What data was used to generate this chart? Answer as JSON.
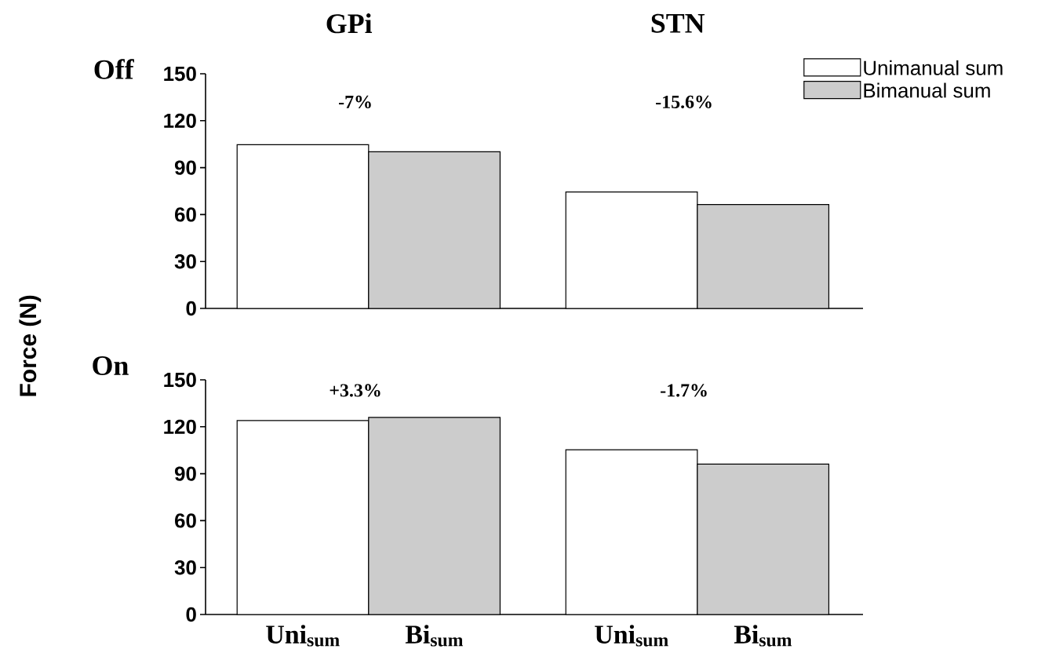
{
  "chart_data": [
    {
      "type": "bar",
      "title": "Off",
      "ylabel": "Force (N)",
      "categories": [
        null,
        null,
        null,
        null
      ],
      "series": [
        {
          "name": "Unimanual sum",
          "color": "#ffffff",
          "values": [
            104.7,
            null,
            74.4,
            null
          ]
        },
        {
          "name": "Bimanual sum",
          "color": "#cccccc",
          "values": [
            null,
            100.1,
            null,
            66.4
          ]
        }
      ],
      "annotations": [
        "GPi",
        "STN",
        "-7%",
        "-15.6%"
      ],
      "ylim": [
        0,
        150
      ],
      "yticks": [
        0,
        30,
        60,
        90,
        120,
        150
      ],
      "tick_labels": "y",
      "legend": "top right",
      "grid": false
    },
    {
      "type": "bar",
      "title": "On",
      "categories": [
        "Uni$_{sum}$",
        "Bi$_{sum}$",
        "Uni$_{sum}$",
        "Bi$_{sum}$"
      ],
      "series": [
        {
          "color": "#ffffff",
          "values": [
            124.0,
            null,
            105.3,
            null
          ]
        },
        {
          "color": "#cccccc",
          "values": [
            null,
            126.0,
            null,
            96.1
          ]
        }
      ],
      "annotations": [
        "+3.3%",
        "-1.7%"
      ],
      "ylim": [
        0,
        150
      ],
      "yticks": [
        0,
        30,
        60,
        90,
        120,
        150
      ],
      "legend": false,
      "grid": false
    }
  ]
}
